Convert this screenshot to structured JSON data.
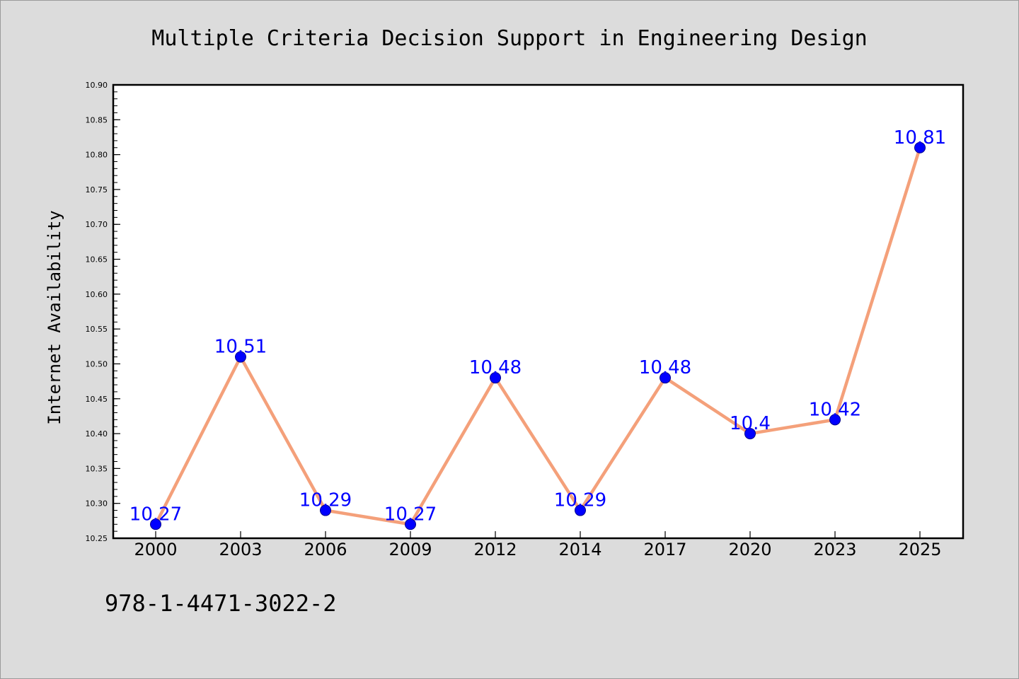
{
  "chart_data": {
    "type": "line",
    "title": "Multiple Criteria Decision Support in Engineering Design",
    "xlabel": "",
    "ylabel": "Internet Availability",
    "categories": [
      "2000",
      "2003",
      "2006",
      "2009",
      "2012",
      "2014",
      "2017",
      "2020",
      "2023",
      "2025"
    ],
    "series": [
      {
        "values": [
          10.27,
          10.51,
          10.29,
          10.27,
          10.48,
          10.29,
          10.48,
          10.4,
          10.42,
          10.81
        ],
        "data_labels": [
          "10.27",
          "10.51",
          "10.29",
          "10.27",
          "10.48",
          "10.29",
          "10.48",
          "10.4",
          "10.42",
          "10.81"
        ],
        "line_color": "#f4a07a",
        "marker_color": "#0000ff"
      }
    ],
    "ylim": [
      10.25,
      10.9
    ],
    "yticks": [
      "10.25",
      "10.30",
      "10.35",
      "10.40",
      "10.45",
      "10.50",
      "10.55",
      "10.60",
      "10.65",
      "10.70",
      "10.75",
      "10.80",
      "10.85",
      "10.90"
    ],
    "grid": false,
    "legend": "none",
    "footer": "978-1-4471-3022-2"
  },
  "colors": {
    "background": "#dcdcdc",
    "plot_area": "#ffffff",
    "line": "#f4a07a",
    "marker": "#0000ff",
    "data_label": "#0000ff"
  }
}
